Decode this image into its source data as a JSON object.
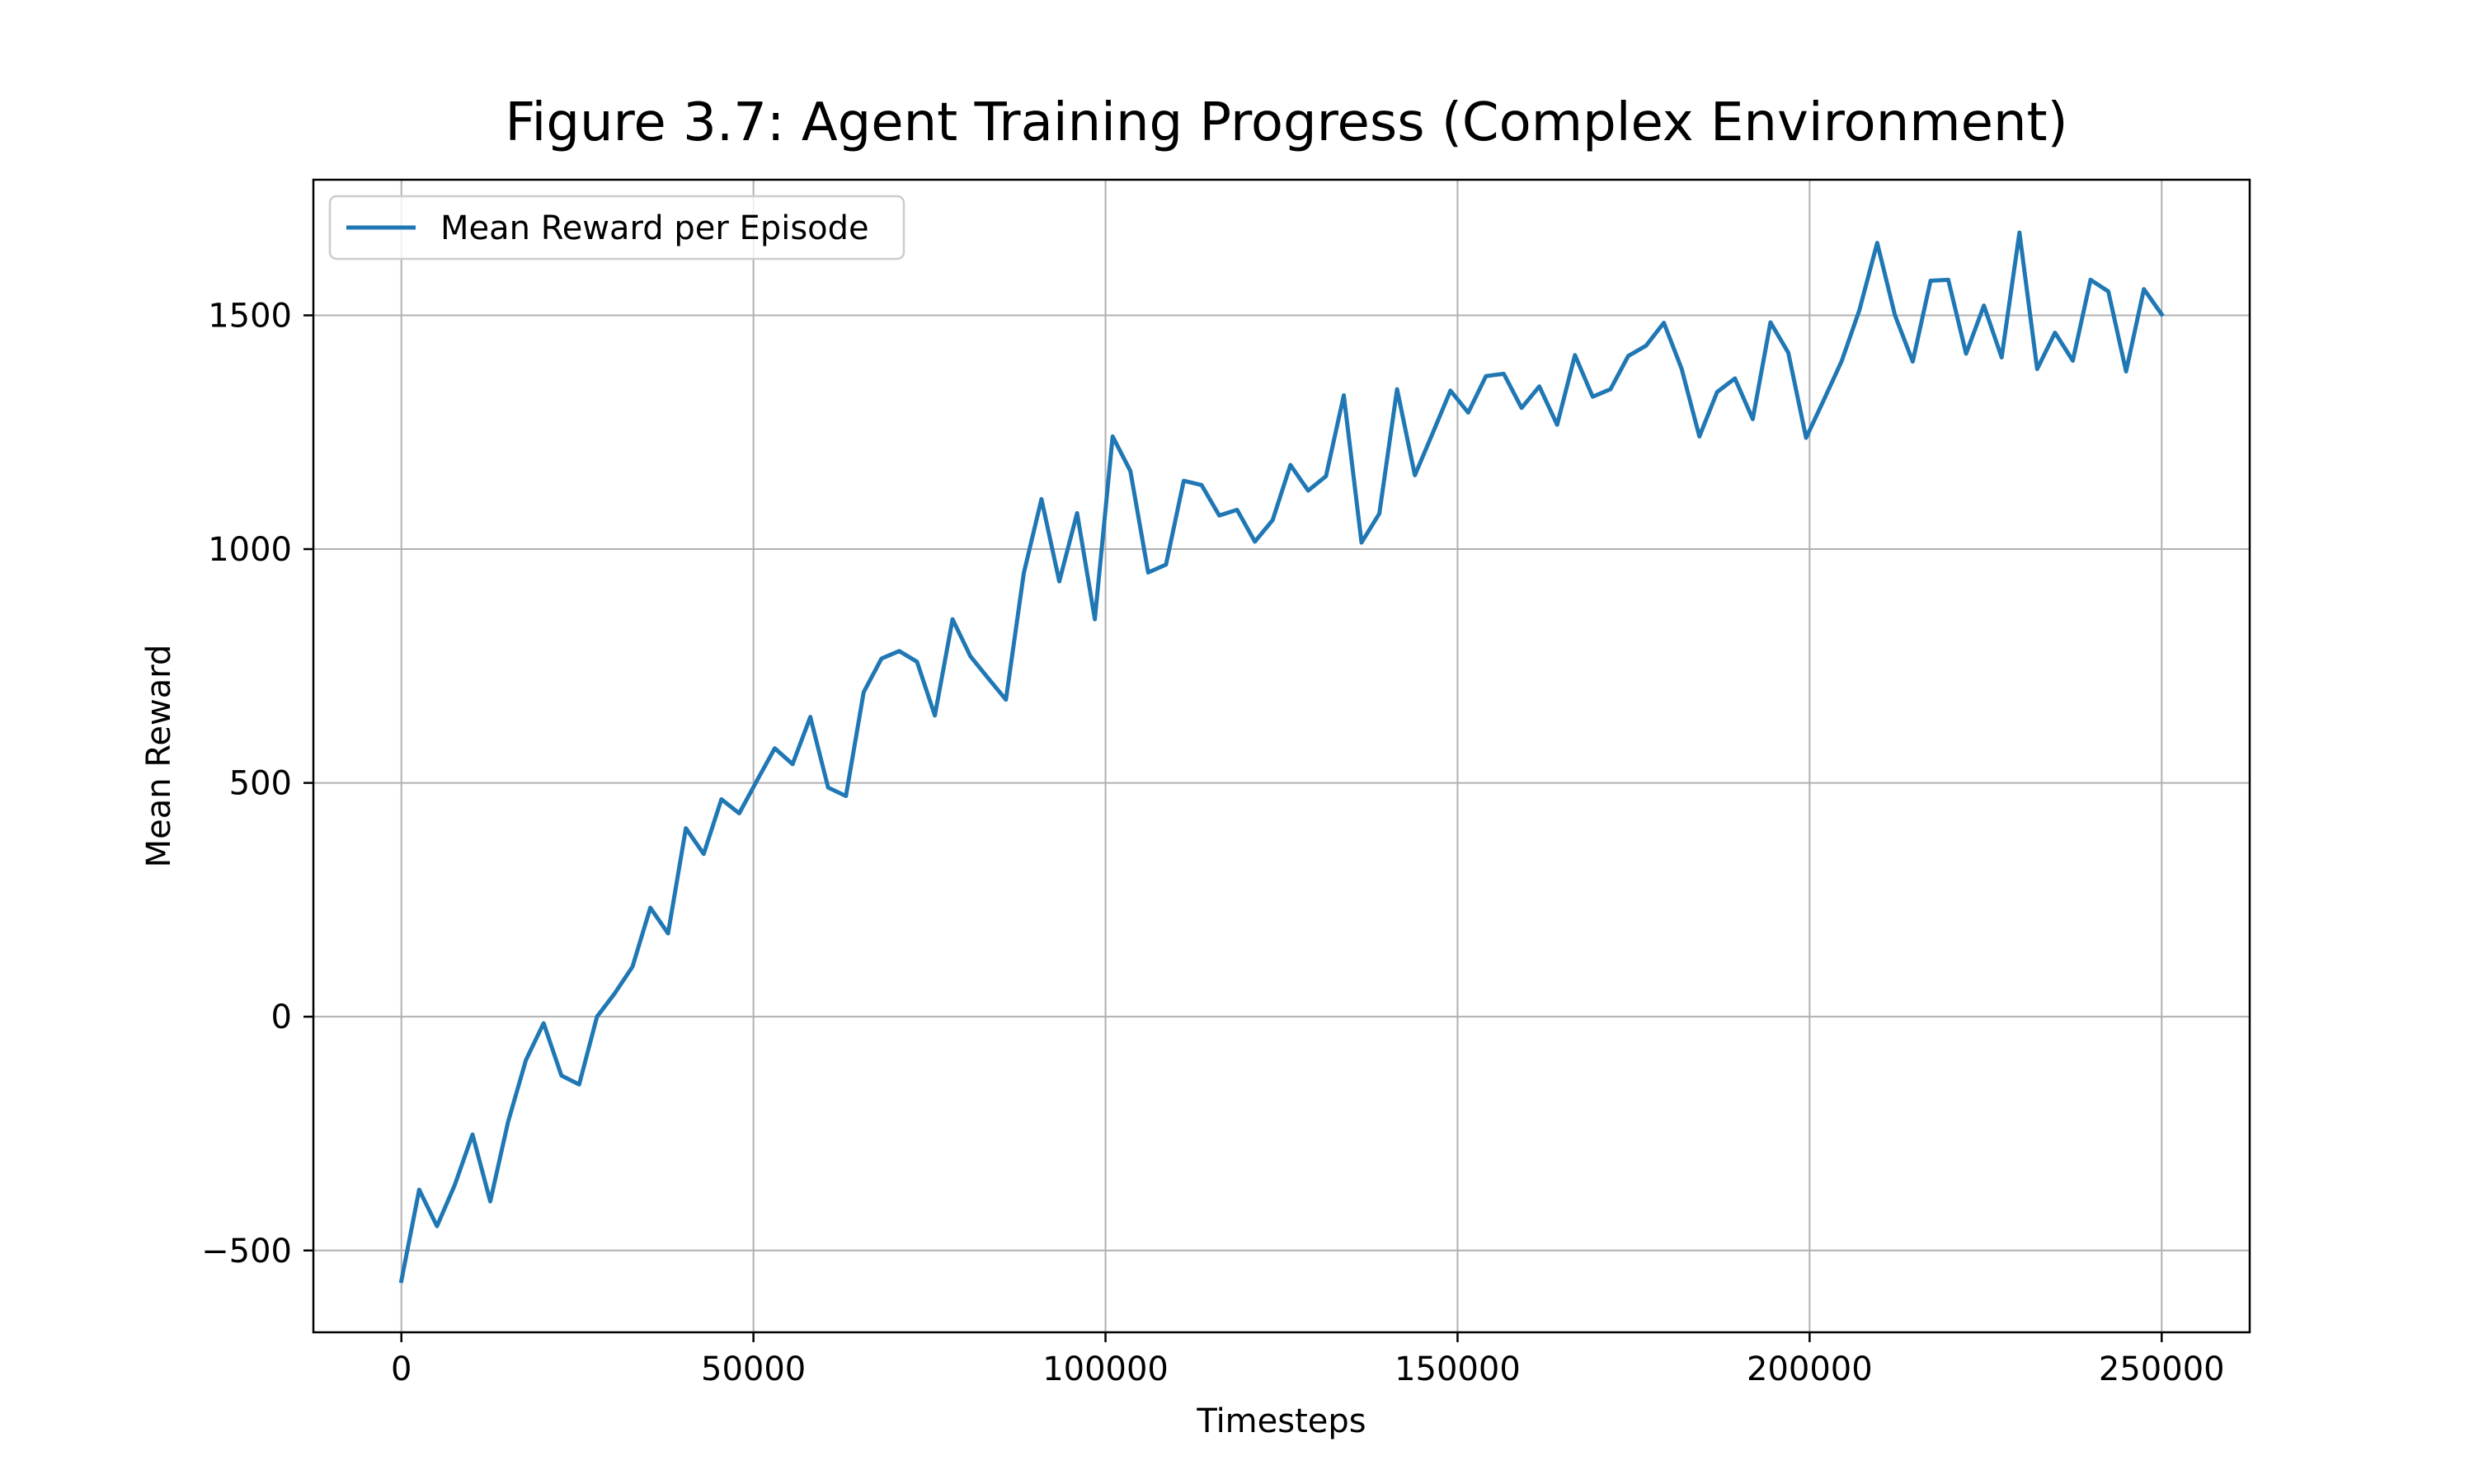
{
  "colors": {
    "series": "#1f77b4",
    "grid": "#b0b0b0",
    "axes": "#000000",
    "background": "#ffffff"
  },
  "chart_data": {
    "type": "line",
    "title": "Figure 3.7: Agent Training Progress (Complex Environment)",
    "xlabel": "Timesteps",
    "ylabel": "Mean Reward",
    "xlim": [
      -12500,
      262500
    ],
    "ylim": [
      -675,
      1790
    ],
    "xticks": [
      0,
      50000,
      100000,
      150000,
      200000,
      250000
    ],
    "xtick_labels": [
      "0",
      "50000",
      "100000",
      "150000",
      "200000",
      "250000"
    ],
    "yticks": [
      -500,
      0,
      500,
      1000,
      1500
    ],
    "ytick_labels": [
      "−500",
      "0",
      "500",
      "1000",
      "1500"
    ],
    "grid": true,
    "legend_position": "upper-left",
    "series": [
      {
        "name": "Mean Reward per Episode",
        "x": [
          0,
          2525,
          5051,
          7576,
          10101,
          12626,
          15152,
          17677,
          20202,
          22727,
          25253,
          27778,
          30303,
          32828,
          35354,
          37879,
          40404,
          42929,
          45455,
          47980,
          50505,
          53030,
          55556,
          58081,
          60606,
          63131,
          65657,
          68182,
          70707,
          73232,
          75758,
          78283,
          80808,
          83333,
          85859,
          88384,
          90909,
          93434,
          95960,
          98485,
          101010,
          103535,
          106061,
          108586,
          111111,
          113636,
          116162,
          118687,
          121212,
          123737,
          126263,
          128788,
          131313,
          133838,
          136364,
          138889,
          141414,
          143939,
          146465,
          148990,
          151515,
          154040,
          156566,
          159091,
          161616,
          164141,
          166667,
          169192,
          171717,
          174242,
          176768,
          179293,
          181818,
          184343,
          186869,
          189394,
          191919,
          194444,
          196970,
          199495,
          202020,
          204545,
          207071,
          209596,
          212121,
          214646,
          217172,
          219697,
          222222,
          224747,
          227273,
          229798,
          232323,
          234848,
          237374,
          239899,
          242424,
          244949,
          247475,
          250000
        ],
        "values": [
          -565,
          -370,
          -448,
          -360,
          -252,
          -395,
          -225,
          -93,
          -14,
          -126,
          -145,
          0,
          50,
          107,
          233,
          178,
          403,
          348,
          465,
          435,
          505,
          574,
          540,
          641,
          490,
          472,
          694,
          766,
          782,
          759,
          644,
          850,
          771,
          724,
          678,
          948,
          1107,
          931,
          1077,
          850,
          1241,
          1167,
          950,
          967,
          1146,
          1137,
          1072,
          1084,
          1016,
          1062,
          1180,
          1125,
          1156,
          1329,
          1014,
          1076,
          1342,
          1158,
          1248,
          1339,
          1292,
          1370,
          1375,
          1302,
          1348,
          1266,
          1415,
          1326,
          1342,
          1413,
          1435,
          1484,
          1386,
          1241,
          1336,
          1365,
          1278,
          1485,
          1420,
          1238,
          1319,
          1402,
          1511,
          1655,
          1500,
          1401,
          1574,
          1576,
          1418,
          1521,
          1410,
          1677,
          1385,
          1463,
          1403,
          1576,
          1551,
          1380,
          1556,
          1502
        ]
      }
    ]
  }
}
